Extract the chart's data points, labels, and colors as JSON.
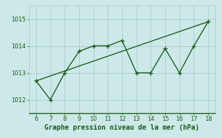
{
  "x": [
    6,
    7,
    8,
    9,
    10,
    11,
    12,
    13,
    14,
    15,
    16,
    17,
    18
  ],
  "y_line": [
    1012.7,
    1012.0,
    1013.0,
    1013.8,
    1014.0,
    1014.0,
    1014.2,
    1013.0,
    1013.0,
    1013.9,
    1013.0,
    1014.0,
    1014.9
  ],
  "trend_x": [
    6,
    18
  ],
  "trend_y": [
    1012.7,
    1014.9
  ],
  "xlim": [
    5.5,
    18.5
  ],
  "ylim": [
    1011.5,
    1015.5
  ],
  "yticks": [
    1012,
    1013,
    1014,
    1015
  ],
  "xticks": [
    6,
    7,
    8,
    9,
    10,
    11,
    12,
    13,
    14,
    15,
    16,
    17,
    18
  ],
  "line_color": "#1a5c1a",
  "trend_color": "#1a5c1a",
  "marker": "+",
  "background_color": "#cce8e8",
  "grid_color": "#a0c8c8",
  "xlabel": "Graphe pression niveau de la mer (hPa)",
  "xlabel_color": "#1a5c1a",
  "tick_color": "#1a5c1a",
  "linewidth": 1.0,
  "markersize": 4,
  "markeredgewidth": 1.0,
  "xlabel_fontsize": 7,
  "tick_fontsize": 6
}
